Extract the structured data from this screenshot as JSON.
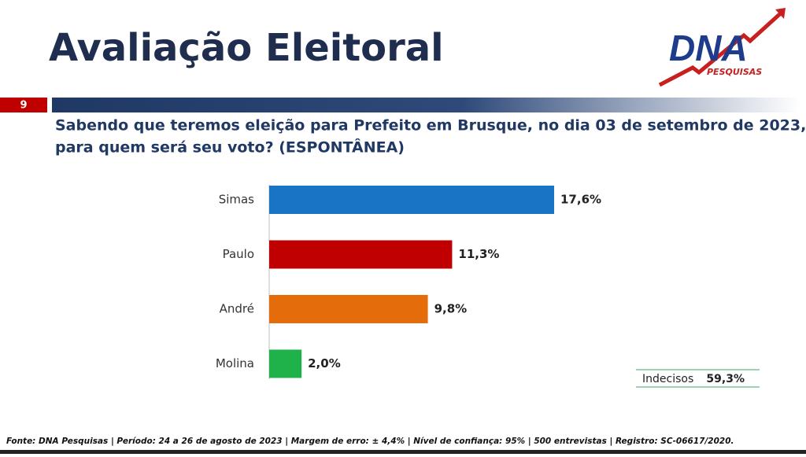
{
  "header": {
    "title": "Avaliação Eleitoral",
    "page_number": "9",
    "logo_text": "DNA",
    "logo_subtext": "PESQUISAS"
  },
  "chart_data": {
    "type": "bar",
    "orientation": "horizontal",
    "title": [
      "Sabendo que teremos eleição para Prefeito em Brusque, no dia 03 de setembro de 2023,",
      "para quem será seu voto? (ESPONTÂNEA)"
    ],
    "categories": [
      "Simas",
      "Paulo",
      "André",
      "Molina"
    ],
    "values": [
      17.6,
      11.3,
      9.8,
      2.0
    ],
    "value_labels": [
      "17,6%",
      "11,3%",
      "9,8%",
      "2,0%"
    ],
    "colors": [
      "#1a74c6",
      "#c00000",
      "#e46c0a",
      "#1fb24a"
    ]
  },
  "undecided": {
    "label": "Indecisos",
    "value": "59,3%"
  },
  "footer": "Fonte: DNA Pesquisas | Período: 24 a 26 de agosto de 2023 | Margem de erro: ± 4,4% | Nível de confiança: 95% | 500 entrevistas | Registro: SC-06617/2020."
}
